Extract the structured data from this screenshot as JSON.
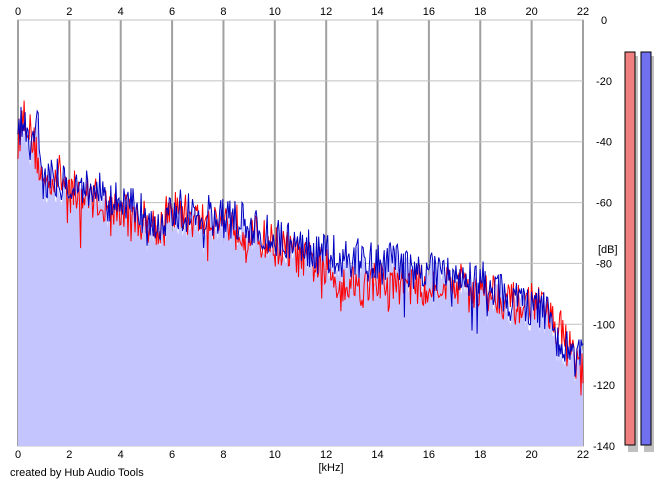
{
  "chart_data": {
    "type": "area",
    "xlabel": "[kHz]",
    "ylabel": "[dB]",
    "xlim": [
      0,
      22
    ],
    "ylim": [
      -140,
      0
    ],
    "x_ticks": [
      0,
      2,
      4,
      6,
      8,
      10,
      12,
      14,
      16,
      18,
      20,
      22
    ],
    "y_ticks": [
      0,
      -20,
      -40,
      -60,
      -80,
      -100,
      -120,
      -140
    ],
    "grid": true,
    "series": [
      {
        "color": "#ff0000",
        "x": [
          0,
          0.25,
          0.5,
          0.75,
          1,
          1.25,
          1.5,
          2,
          2.5,
          3,
          3.5,
          4,
          4.5,
          5,
          5.5,
          6,
          6.5,
          7,
          7.5,
          8,
          8.5,
          9,
          9.5,
          10,
          10.5,
          11,
          11.5,
          12,
          12.5,
          13,
          13.5,
          14,
          14.5,
          15,
          15.5,
          16,
          16.5,
          17,
          17.5,
          18,
          18.5,
          19,
          19.5,
          20,
          20.5,
          21,
          21.5,
          22
        ],
        "values": [
          -40,
          -30,
          -38,
          -45,
          -55,
          -52,
          -50,
          -55,
          -58,
          -58,
          -62,
          -63,
          -65,
          -66,
          -68,
          -62,
          -64,
          -66,
          -65,
          -66,
          -67,
          -70,
          -72,
          -74,
          -76,
          -78,
          -80,
          -82,
          -86,
          -86,
          -88,
          -85,
          -88,
          -86,
          -87,
          -88,
          -86,
          -87,
          -86,
          -90,
          -89,
          -92,
          -94,
          -92,
          -96,
          -100,
          -108,
          -115
        ]
      },
      {
        "color": "#0000c0",
        "fill": "#c4c4ff",
        "x": [
          0,
          0.25,
          0.5,
          0.75,
          1,
          1.25,
          1.5,
          2,
          2.5,
          3,
          3.5,
          4,
          4.5,
          5,
          5.5,
          6,
          6.5,
          7,
          7.5,
          8,
          8.5,
          9,
          9.5,
          10,
          10.5,
          11,
          11.5,
          12,
          12.5,
          13,
          13.5,
          14,
          14.5,
          15,
          15.5,
          16,
          16.5,
          17,
          17.5,
          18,
          18.5,
          19,
          19.5,
          20,
          20.5,
          21,
          21.5,
          22
        ],
        "values": [
          -38,
          -30,
          -42,
          -30,
          -55,
          -50,
          -52,
          -53,
          -56,
          -54,
          -60,
          -60,
          -62,
          -64,
          -66,
          -62,
          -63,
          -64,
          -64,
          -65,
          -66,
          -68,
          -70,
          -72,
          -72,
          -74,
          -75,
          -76,
          -78,
          -78,
          -79,
          -80,
          -80,
          -81,
          -82,
          -83,
          -84,
          -84,
          -84,
          -86,
          -87,
          -90,
          -92,
          -94,
          -96,
          -104,
          -110,
          -112
        ]
      }
    ],
    "meters": [
      {
        "color": "#f08080",
        "level": 0.0
      },
      {
        "color": "#7070f0",
        "level": 0.0
      }
    ]
  },
  "footer": {
    "credit": "created by Hub Audio Tools"
  }
}
